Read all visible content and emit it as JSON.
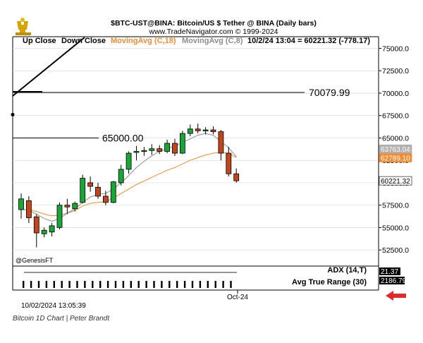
{
  "header": {
    "title": "$BTC-UST@BINA:  Bitcoin/US $ Tether @ BINA  (Daily bars)",
    "copyright": "www.TradeNavigator.com © 1999-2024"
  },
  "legend": {
    "up": "Up Close",
    "down": "Down Close",
    "ma18": "MovingAvg (C,18)",
    "ma8": "MovingAvg (C,8)",
    "readout": "10/2/24 13:04 = 60221.32 (-778.17)"
  },
  "colors": {
    "up": "#1aa637",
    "down": "#c1461c",
    "ma18": "#f28c33",
    "ma8": "#8c8c8c",
    "grid": "#d9d9d9",
    "arrow": "#e5282a"
  },
  "annotations": {
    "resistance_label": "70079.99",
    "support_label": "65000.00",
    "watermark": "@GenesisFT"
  },
  "price_tags": [
    {
      "value": 63763.04,
      "label": "63763.04",
      "bg": "#b0b0b0",
      "fg": "#ffffff"
    },
    {
      "value": 62789.1,
      "label": "62789.10",
      "bg": "#f28c33",
      "fg": "#ffffff"
    },
    {
      "value": 60221.32,
      "label": "60221.32",
      "bg": "#ffffff",
      "fg": "#000000"
    }
  ],
  "indicators": {
    "adx_label": "ADX (14,T)",
    "adx_value": "21.37",
    "atr_label": "Avg True Range (30)",
    "atr_value": "2186.79"
  },
  "footer": {
    "x_label": "Oct-24",
    "timestamp": "10/02/2024 13:05:39"
  },
  "caption": "Bitcoin 1D Chart | Peter Brandt",
  "chart_data": {
    "type": "candlestick",
    "y_ticks": [
      52500,
      55000,
      57500,
      60000,
      62500,
      65000,
      67500,
      70000,
      72500,
      75000
    ],
    "y_tick_labels": [
      "52500.0",
      "55000.0",
      "57500.0",
      "60000.0",
      "62500.0",
      "65000.0",
      "67500.0",
      "70000.0",
      "72500.0",
      "75000.0"
    ],
    "ylim": [
      50700,
      76300
    ],
    "horizontal_lines": [
      70079.99,
      65000.0
    ],
    "candles": [
      {
        "o": 57000,
        "h": 58800,
        "l": 56000,
        "c": 58200
      },
      {
        "o": 58000,
        "h": 58500,
        "l": 55500,
        "c": 56100
      },
      {
        "o": 56200,
        "h": 56500,
        "l": 52800,
        "c": 54400
      },
      {
        "o": 54300,
        "h": 55000,
        "l": 53900,
        "c": 54700
      },
      {
        "o": 54500,
        "h": 55500,
        "l": 54000,
        "c": 55200
      },
      {
        "o": 55000,
        "h": 57800,
        "l": 54800,
        "c": 57500
      },
      {
        "o": 57500,
        "h": 58200,
        "l": 56500,
        "c": 57300
      },
      {
        "o": 57100,
        "h": 57900,
        "l": 56800,
        "c": 57700
      },
      {
        "o": 57800,
        "h": 60900,
        "l": 57700,
        "c": 60500
      },
      {
        "o": 60000,
        "h": 60700,
        "l": 59000,
        "c": 59600
      },
      {
        "o": 59500,
        "h": 60000,
        "l": 58200,
        "c": 58500
      },
      {
        "o": 58500,
        "h": 59100,
        "l": 57500,
        "c": 57800
      },
      {
        "o": 57800,
        "h": 60200,
        "l": 57700,
        "c": 60100
      },
      {
        "o": 60000,
        "h": 62000,
        "l": 59700,
        "c": 61500
      },
      {
        "o": 61500,
        "h": 63500,
        "l": 61000,
        "c": 63300
      },
      {
        "o": 63400,
        "h": 64100,
        "l": 62500,
        "c": 63500
      },
      {
        "o": 63500,
        "h": 64000,
        "l": 63000,
        "c": 63600
      },
      {
        "o": 63600,
        "h": 64300,
        "l": 63100,
        "c": 63800
      },
      {
        "o": 63800,
        "h": 64200,
        "l": 63200,
        "c": 63500
      },
      {
        "o": 63500,
        "h": 64800,
        "l": 63300,
        "c": 64400
      },
      {
        "o": 64400,
        "h": 64900,
        "l": 63000,
        "c": 63300
      },
      {
        "o": 63300,
        "h": 65800,
        "l": 63200,
        "c": 65500
      },
      {
        "o": 65500,
        "h": 66500,
        "l": 65200,
        "c": 66000
      },
      {
        "o": 66000,
        "h": 66600,
        "l": 65500,
        "c": 65800
      },
      {
        "o": 65800,
        "h": 66200,
        "l": 65400,
        "c": 65900
      },
      {
        "o": 65900,
        "h": 66300,
        "l": 65400,
        "c": 65700
      },
      {
        "o": 65700,
        "h": 65900,
        "l": 62500,
        "c": 63300
      },
      {
        "o": 63300,
        "h": 64000,
        "l": 60700,
        "c": 61000
      },
      {
        "o": 61000,
        "h": 61600,
        "l": 60000,
        "c": 60221.32
      }
    ],
    "ma18": [
      57000,
      57000,
      56800,
      56500,
      56300,
      56400,
      56600,
      56900,
      57400,
      57700,
      57800,
      57900,
      58300,
      58800,
      59300,
      59800,
      60200,
      60600,
      61000,
      61400,
      61700,
      62100,
      62500,
      62800,
      63100,
      63300,
      63400,
      63300,
      62800
    ],
    "ma8": [
      57100,
      56900,
      56500,
      56000,
      55700,
      56000,
      56600,
      57100,
      57800,
      58400,
      58700,
      58800,
      59300,
      60000,
      60800,
      61700,
      62400,
      63000,
      63500,
      63800,
      64100,
      64500,
      64900,
      65300,
      65500,
      65300,
      64600,
      63900,
      62900
    ]
  }
}
